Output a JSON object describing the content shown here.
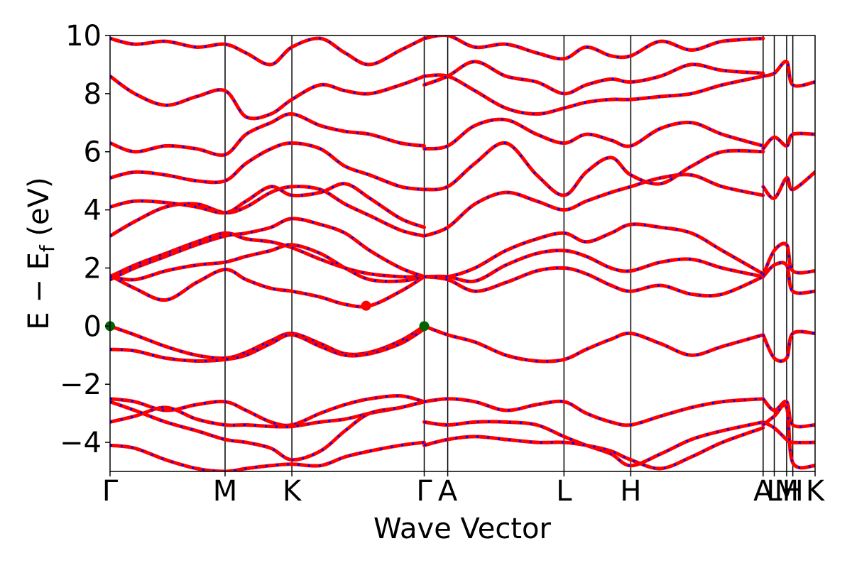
{
  "chart_data": {
    "type": "line",
    "xlabel": "Wave Vector",
    "ylabel": "E − E",
    "ylabel_sub": "f",
    "ylabel_unit": " (eV)",
    "ylim": [
      -5,
      10
    ],
    "yticks": [
      -4,
      -2,
      0,
      2,
      4,
      6,
      8,
      10
    ],
    "ytick_labels": [
      "−4",
      "−2",
      "0",
      "2",
      "4",
      "6",
      "8",
      "10"
    ],
    "xlim": [
      0,
      5.7
    ],
    "kpoints": [
      {
        "label": "Γ",
        "x": 0.0
      },
      {
        "label": "M",
        "x": 0.93
      },
      {
        "label": "K",
        "x": 1.47
      },
      {
        "label": "Γ",
        "x": 2.54
      },
      {
        "label": "A",
        "x": 2.73
      },
      {
        "label": "L",
        "x": 3.67
      },
      {
        "label": "H",
        "x": 4.21
      },
      {
        "label": "A",
        "x": 5.28
      },
      {
        "label": "L",
        "x": 5.37
      },
      {
        "label": "M",
        "x": 5.47
      },
      {
        "label": "H",
        "x": 5.52
      },
      {
        "label": "K",
        "x": 5.7
      }
    ],
    "series_style": {
      "up_color": "#ff0000",
      "down_color": "#0000ff",
      "style": "overlaid red solid with blue dashed"
    },
    "bands": [
      {
        "x": [
          0,
          0.2,
          0.45,
          0.7,
          0.93,
          1.1,
          1.3,
          1.47,
          1.7,
          1.9,
          2.1,
          2.35,
          2.54
        ],
        "y": [
          0,
          -0.3,
          -0.7,
          -1.0,
          -1.1,
          -0.9,
          -0.5,
          -0.25,
          -0.6,
          -0.95,
          -0.9,
          -0.5,
          0
        ]
      },
      {
        "x": [
          0,
          0.2,
          0.45,
          0.7,
          0.93,
          1.1,
          1.3,
          1.47,
          1.7,
          1.9,
          2.1,
          2.35,
          2.54
        ],
        "y": [
          -0.8,
          -0.85,
          -1.1,
          -1.2,
          -1.15,
          -1.0,
          -0.6,
          -0.3,
          -0.7,
          -1.0,
          -0.95,
          -0.6,
          -0.1
        ]
      },
      {
        "x": [
          2.54,
          2.73,
          2.95,
          3.2,
          3.45,
          3.67,
          3.85,
          4.05,
          4.21,
          4.45,
          4.7,
          4.95,
          5.28
        ],
        "y": [
          0,
          -0.3,
          -0.55,
          -1.0,
          -1.2,
          -1.15,
          -0.8,
          -0.45,
          -0.25,
          -0.6,
          -1.0,
          -0.7,
          -0.3
        ]
      },
      {
        "x": [
          0,
          0.2,
          0.45,
          0.7,
          0.93,
          1.1,
          1.3,
          1.47,
          1.7,
          1.9,
          2.1,
          2.35,
          2.54
        ],
        "y": [
          1.75,
          1.3,
          0.9,
          1.5,
          1.95,
          1.6,
          1.3,
          1.2,
          1.0,
          0.75,
          0.7,
          1.2,
          1.7
        ]
      },
      {
        "x": [
          0,
          0.2,
          0.45,
          0.7,
          0.93,
          1.1,
          1.3,
          1.47,
          1.7,
          1.9,
          2.1,
          2.35,
          2.54
        ],
        "y": [
          1.7,
          2.1,
          2.5,
          2.9,
          3.2,
          3.0,
          2.9,
          2.7,
          2.3,
          2.0,
          1.8,
          1.7,
          1.7
        ]
      },
      {
        "x": [
          0,
          0.2,
          0.45,
          0.7,
          0.93,
          1.1,
          1.3,
          1.47,
          1.7,
          1.9,
          2.1,
          2.35,
          2.54
        ],
        "y": [
          1.6,
          2.0,
          2.4,
          2.8,
          3.1,
          3.2,
          3.4,
          3.7,
          3.5,
          3.2,
          2.6,
          2.0,
          1.7
        ]
      },
      {
        "x": [
          0,
          0.2,
          0.45,
          0.7,
          0.93,
          1.1,
          1.3,
          1.47,
          1.7,
          1.9,
          2.1,
          2.35,
          2.54
        ],
        "y": [
          1.7,
          1.6,
          1.9,
          2.1,
          2.2,
          2.4,
          2.6,
          2.8,
          2.5,
          2.0,
          1.6,
          1.55,
          1.7
        ]
      },
      {
        "x": [
          0,
          0.2,
          0.45,
          0.7,
          0.93,
          1.1,
          1.3,
          1.47,
          1.7,
          1.9,
          2.1,
          2.35,
          2.54
        ],
        "y": [
          3.1,
          3.6,
          4.1,
          4.2,
          3.9,
          4.1,
          4.6,
          4.8,
          4.7,
          4.2,
          3.8,
          3.3,
          3.1
        ]
      },
      {
        "x": [
          0,
          0.2,
          0.45,
          0.7,
          0.93,
          1.1,
          1.3,
          1.47,
          1.7,
          1.9,
          2.1,
          2.35,
          2.54
        ],
        "y": [
          4.1,
          4.3,
          4.25,
          4.1,
          3.9,
          4.3,
          4.8,
          4.5,
          4.6,
          4.9,
          4.4,
          3.7,
          3.4
        ]
      },
      {
        "x": [
          0,
          0.2,
          0.45,
          0.7,
          0.93,
          1.1,
          1.3,
          1.47,
          1.7,
          1.9,
          2.1,
          2.35,
          2.54
        ],
        "y": [
          5.1,
          5.3,
          5.2,
          5.0,
          5.0,
          5.6,
          6.1,
          6.3,
          6.1,
          5.5,
          5.2,
          4.8,
          4.7
        ]
      },
      {
        "x": [
          0,
          0.2,
          0.45,
          0.7,
          0.93,
          1.1,
          1.3,
          1.47,
          1.7,
          1.9,
          2.1,
          2.35,
          2.54
        ],
        "y": [
          6.3,
          6.0,
          6.2,
          6.1,
          5.9,
          6.6,
          7.0,
          7.3,
          6.9,
          6.7,
          6.6,
          6.3,
          6.2
        ]
      },
      {
        "x": [
          0,
          0.2,
          0.45,
          0.7,
          0.93,
          1.1,
          1.3,
          1.47,
          1.7,
          1.9,
          2.1,
          2.35,
          2.54
        ],
        "y": [
          8.6,
          8.0,
          7.6,
          7.9,
          8.1,
          7.2,
          7.3,
          7.8,
          8.3,
          8.1,
          8.0,
          8.3,
          8.6
        ]
      },
      {
        "x": [
          0,
          0.2,
          0.45,
          0.7,
          0.93,
          1.1,
          1.3,
          1.47,
          1.7,
          1.9,
          2.1,
          2.35,
          2.54
        ],
        "y": [
          9.9,
          9.7,
          9.8,
          9.6,
          9.7,
          9.4,
          9.0,
          9.6,
          9.9,
          9.4,
          9.0,
          9.5,
          9.9
        ]
      },
      {
        "x": [
          2.54,
          2.73,
          2.95,
          3.2,
          3.45,
          3.67,
          3.85,
          4.05,
          4.21,
          4.45,
          4.7,
          4.95,
          5.28
        ],
        "y": [
          1.7,
          1.7,
          1.55,
          2.1,
          2.5,
          2.6,
          2.4,
          2.0,
          1.9,
          2.2,
          2.3,
          2.0,
          1.7
        ]
      },
      {
        "x": [
          2.54,
          2.73,
          2.95,
          3.2,
          3.45,
          3.67,
          3.85,
          4.05,
          4.21,
          4.45,
          4.7,
          4.95,
          5.28
        ],
        "y": [
          1.7,
          1.6,
          1.2,
          1.5,
          1.9,
          2.0,
          1.8,
          1.4,
          1.2,
          1.4,
          1.1,
          1.1,
          1.7
        ]
      },
      {
        "x": [
          2.54,
          2.73,
          2.95,
          3.2,
          3.45,
          3.67,
          3.85,
          4.05,
          4.21,
          4.45,
          4.7,
          4.95,
          5.28
        ],
        "y": [
          1.7,
          1.7,
          2.0,
          2.6,
          3.0,
          3.2,
          2.9,
          3.2,
          3.5,
          3.4,
          3.2,
          2.6,
          1.8
        ]
      },
      {
        "x": [
          2.54,
          2.73,
          2.95,
          3.2,
          3.45,
          3.67,
          3.85,
          4.05,
          4.21,
          4.45,
          4.7,
          4.95,
          5.28
        ],
        "y": [
          3.1,
          3.4,
          4.2,
          4.6,
          4.3,
          4.0,
          4.3,
          4.6,
          4.8,
          5.1,
          5.2,
          4.8,
          4.5
        ]
      },
      {
        "x": [
          2.54,
          2.73,
          2.95,
          3.2,
          3.45,
          3.67,
          3.85,
          4.05,
          4.21,
          4.45,
          4.7,
          4.95,
          5.28
        ],
        "y": [
          4.7,
          4.8,
          5.6,
          6.3,
          5.2,
          4.5,
          5.3,
          5.8,
          5.2,
          4.9,
          5.5,
          6.0,
          6.0
        ]
      },
      {
        "x": [
          2.54,
          2.73,
          2.95,
          3.2,
          3.45,
          3.67,
          3.85,
          4.05,
          4.21,
          4.45,
          4.7,
          4.95,
          5.28
        ],
        "y": [
          6.1,
          6.2,
          6.9,
          7.1,
          6.6,
          6.3,
          6.6,
          6.4,
          6.2,
          6.8,
          7.0,
          6.6,
          6.2
        ]
      },
      {
        "x": [
          2.54,
          2.73,
          2.95,
          3.2,
          3.45,
          3.67,
          3.85,
          4.05,
          4.21,
          4.45,
          4.7,
          4.95,
          5.28
        ],
        "y": [
          8.6,
          8.6,
          8.1,
          7.5,
          7.3,
          7.5,
          7.7,
          7.8,
          7.8,
          7.9,
          8.0,
          8.3,
          8.6
        ]
      },
      {
        "x": [
          2.54,
          2.73,
          2.95,
          3.2,
          3.45,
          3.67,
          3.85,
          4.05,
          4.21,
          4.45,
          4.7,
          4.95,
          5.28
        ],
        "y": [
          8.3,
          8.6,
          9.1,
          8.6,
          8.4,
          8.0,
          8.3,
          8.5,
          8.4,
          8.6,
          9.0,
          8.8,
          8.7
        ]
      },
      {
        "x": [
          2.54,
          2.73,
          2.95,
          3.2,
          3.45,
          3.67,
          3.85,
          4.05,
          4.21,
          4.45,
          4.7,
          4.95,
          5.28
        ],
        "y": [
          9.9,
          10.0,
          9.6,
          9.7,
          9.4,
          9.2,
          9.6,
          9.3,
          9.3,
          9.8,
          9.5,
          9.8,
          9.9
        ]
      },
      {
        "x": [
          0,
          0.2,
          0.45,
          0.7,
          0.93,
          1.1,
          1.3,
          1.47,
          1.7,
          1.9,
          2.1,
          2.35,
          2.54
        ],
        "y": [
          -2.5,
          -2.6,
          -2.9,
          -2.7,
          -2.6,
          -2.9,
          -3.3,
          -3.4,
          -3.0,
          -2.7,
          -2.5,
          -2.4,
          -2.6
        ]
      },
      {
        "x": [
          0,
          0.2,
          0.45,
          0.7,
          0.93,
          1.1,
          1.3,
          1.47,
          1.7,
          1.9,
          2.1,
          2.35,
          2.54
        ],
        "y": [
          -3.3,
          -3.1,
          -2.8,
          -3.2,
          -3.4,
          -3.4,
          -3.45,
          -3.45,
          -3.3,
          -3.2,
          -3.0,
          -2.8,
          -2.6
        ]
      },
      {
        "x": [
          0,
          0.2,
          0.45,
          0.7,
          0.93,
          1.1,
          1.3,
          1.47,
          1.7,
          1.9,
          2.1,
          2.35,
          2.54
        ],
        "y": [
          -2.6,
          -2.9,
          -3.3,
          -3.6,
          -3.9,
          -4.0,
          -4.2,
          -4.6,
          -4.3,
          -3.6,
          -3.0,
          -2.8,
          -2.6
        ]
      },
      {
        "x": [
          0,
          0.2,
          0.45,
          0.7,
          0.93,
          1.1,
          1.3,
          1.47,
          1.7,
          1.9,
          2.1,
          2.35,
          2.54
        ],
        "y": [
          -4.1,
          -4.2,
          -4.6,
          -4.9,
          -5.0,
          -4.9,
          -4.8,
          -4.75,
          -4.8,
          -4.5,
          -4.3,
          -4.1,
          -4.0
        ]
      },
      {
        "x": [
          2.54,
          2.73,
          2.95,
          3.2,
          3.45,
          3.67,
          3.85,
          4.05,
          4.21,
          4.45,
          4.7,
          4.95,
          5.28
        ],
        "y": [
          -2.6,
          -2.5,
          -2.6,
          -2.9,
          -2.7,
          -2.6,
          -3.0,
          -3.3,
          -3.4,
          -3.1,
          -2.8,
          -2.6,
          -2.5
        ]
      },
      {
        "x": [
          2.54,
          2.73,
          2.95,
          3.2,
          3.45,
          3.67,
          3.85,
          4.05,
          4.21,
          4.45,
          4.7,
          4.95,
          5.28
        ],
        "y": [
          -3.3,
          -3.4,
          -3.3,
          -3.3,
          -3.4,
          -3.8,
          -4.1,
          -4.4,
          -4.8,
          -4.4,
          -3.9,
          -3.6,
          -3.3
        ]
      },
      {
        "x": [
          2.54,
          2.73,
          2.95,
          3.2,
          3.45,
          3.67,
          3.85,
          4.05,
          4.21,
          4.45,
          4.7,
          4.95,
          5.28
        ],
        "y": [
          -4.1,
          -3.9,
          -3.8,
          -3.9,
          -4.0,
          -4.0,
          -4.1,
          -4.3,
          -4.6,
          -4.9,
          -4.5,
          -4.0,
          -3.5
        ]
      },
      {
        "x": [
          5.28,
          5.37,
          5.47,
          5.52,
          5.7
        ],
        "y": [
          -0.3,
          -1.1,
          -1.1,
          -0.25,
          -0.25
        ]
      },
      {
        "x": [
          5.28,
          5.37,
          5.47,
          5.52,
          5.7
        ],
        "y": [
          1.7,
          2.1,
          2.1,
          1.2,
          1.2
        ]
      },
      {
        "x": [
          5.28,
          5.37,
          5.47,
          5.52,
          5.7
        ],
        "y": [
          1.75,
          2.6,
          2.8,
          1.9,
          1.9
        ]
      },
      {
        "x": [
          5.28,
          5.37,
          5.47,
          5.52,
          5.7
        ],
        "y": [
          4.8,
          4.4,
          5.1,
          4.7,
          5.3
        ]
      },
      {
        "x": [
          5.28,
          5.37,
          5.47,
          5.52,
          5.7
        ],
        "y": [
          6.1,
          6.5,
          6.2,
          6.6,
          6.6
        ]
      },
      {
        "x": [
          5.28,
          5.37,
          5.47,
          5.52,
          5.7
        ],
        "y": [
          8.6,
          8.7,
          9.1,
          8.3,
          8.4
        ]
      },
      {
        "x": [
          5.28,
          5.37,
          5.47,
          5.52,
          5.7
        ],
        "y": [
          -2.5,
          -2.9,
          -2.6,
          -3.4,
          -3.4
        ]
      },
      {
        "x": [
          5.28,
          5.37,
          5.47,
          5.52,
          5.7
        ],
        "y": [
          -3.3,
          -3.5,
          -3.9,
          -4.0,
          -4.0
        ]
      },
      {
        "x": [
          5.28,
          5.37,
          5.47,
          5.52,
          5.7
        ],
        "y": [
          -3.4,
          -3.1,
          -2.8,
          -4.7,
          -4.8
        ]
      }
    ],
    "markers": [
      {
        "x": 0.0,
        "y": 0.0,
        "color": "#006400",
        "kind": "vbm"
      },
      {
        "x": 2.54,
        "y": 0.0,
        "color": "#006400",
        "kind": "vbm"
      },
      {
        "x": 2.07,
        "y": 0.7,
        "color": "#ff0000",
        "kind": "cbm"
      }
    ]
  }
}
